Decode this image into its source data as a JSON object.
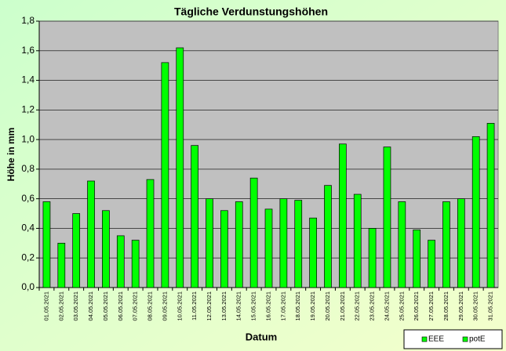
{
  "chart_data": {
    "type": "bar",
    "title": "Tägliche Verdunstungshöhen",
    "x_label": "Datum",
    "y_label": "Höhe in mm",
    "categories": [
      "01.05.2021",
      "02.05.2021",
      "03.05.2021",
      "04.05.2021",
      "05.05.2021",
      "06.05.2021",
      "07.05.2021",
      "08.05.2021",
      "09.05.2021",
      "10.05.2021",
      "11.05.2021",
      "12.05.2021",
      "13.05.2021",
      "14.05.2021",
      "15.05.2021",
      "16.05.2021",
      "17.05.2021",
      "18.05.2021",
      "19.05.2021",
      "20.05.2021",
      "21.05.2021",
      "22.05.2021",
      "23.05.2021",
      "24.05.2021",
      "25.05.2021",
      "26.05.2021",
      "27.05.2021",
      "28.05.2021",
      "29.05.2021",
      "30.05.2021",
      "31.05.2021"
    ],
    "series": [
      {
        "name": "EEE",
        "color": "#00ff00",
        "values": [
          null,
          null,
          null,
          null,
          null,
          null,
          null,
          null,
          null,
          null,
          null,
          null,
          null,
          null,
          null,
          null,
          null,
          null,
          null,
          null,
          null,
          null,
          null,
          null,
          null,
          null,
          null,
          null,
          null,
          null,
          null
        ]
      },
      {
        "name": "potE",
        "color": "#00ff00",
        "values": [
          0.58,
          0.3,
          0.5,
          0.72,
          0.52,
          0.35,
          0.32,
          0.73,
          1.52,
          1.62,
          0.96,
          0.6,
          0.52,
          0.58,
          0.74,
          0.53,
          0.6,
          0.59,
          0.47,
          0.69,
          0.97,
          0.63,
          0.4,
          0.95,
          0.58,
          0.39,
          0.32,
          0.58,
          0.6,
          1.02,
          1.11
        ]
      }
    ],
    "ylim": [
      0,
      1.8
    ],
    "yticks": [
      {
        "value": 0,
        "label": "0,0"
      },
      {
        "value": 0.2,
        "label": "0,2"
      },
      {
        "value": 0.4,
        "label": "0,4"
      },
      {
        "value": 0.6,
        "label": "0,6"
      },
      {
        "value": 0.8,
        "label": "0,8"
      },
      {
        "value": 1.0,
        "label": "1,0"
      },
      {
        "value": 1.2,
        "label": "1,2"
      },
      {
        "value": 1.4,
        "label": "1,4"
      },
      {
        "value": 1.6,
        "label": "1,6"
      },
      {
        "value": 1.8,
        "label": "1,8"
      }
    ],
    "grid": true
  }
}
